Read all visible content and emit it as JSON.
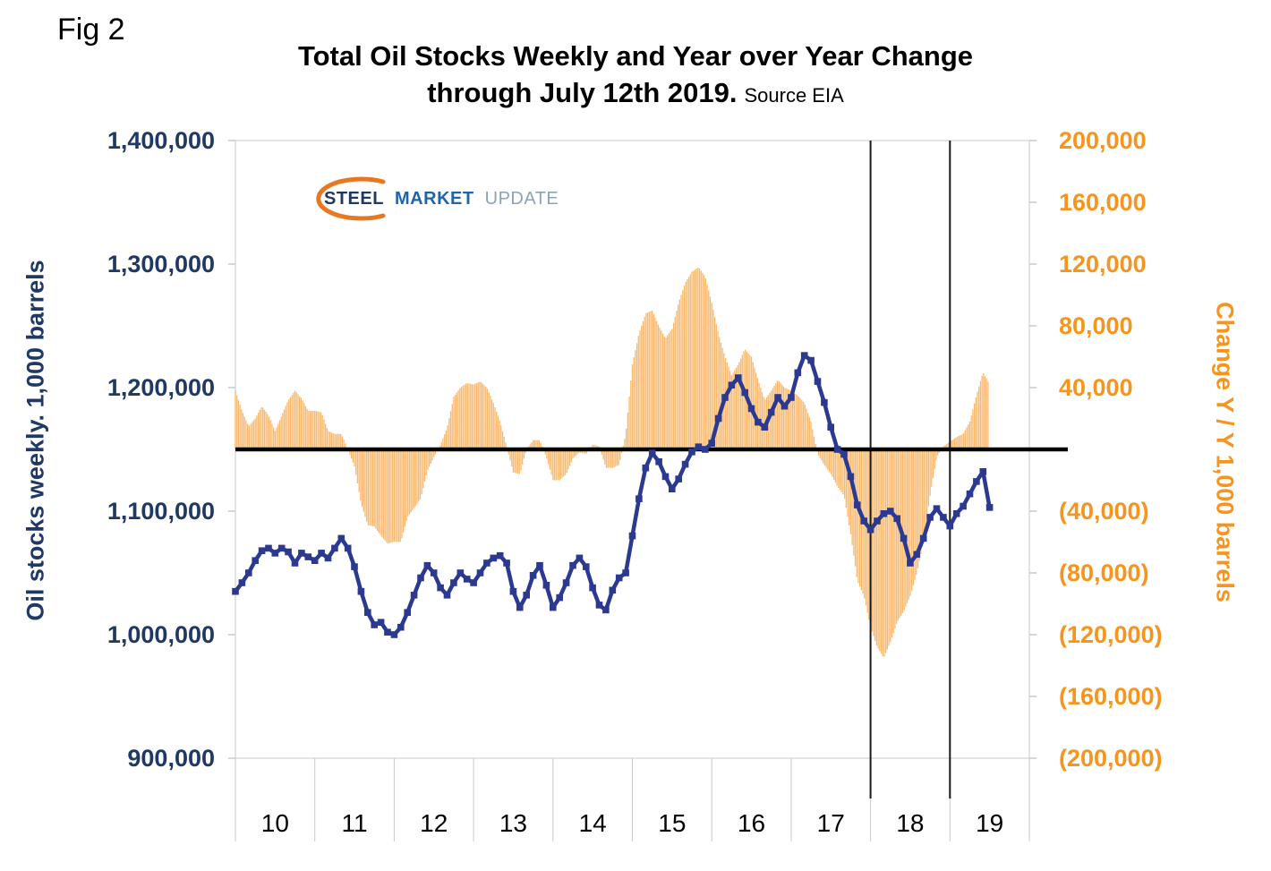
{
  "fig_label": "Fig 2",
  "title": {
    "line1": "Total Oil Stocks Weekly and Year over Year Change",
    "line2": "through July 12th 2019.",
    "source": "Source EIA"
  },
  "logo": {
    "steel": "STEEL",
    "market": "MARKET",
    "update": "UPDATE"
  },
  "left_axis": {
    "title": "Oil stocks weekly. 1,000 barrels",
    "color": "#1F3864",
    "ticks": [
      {
        "label": "1,400,000",
        "value": 1400000
      },
      {
        "label": "1,300,000",
        "value": 1300000
      },
      {
        "label": "1,200,000",
        "value": 1200000
      },
      {
        "label": "1,100,000",
        "value": 1100000
      },
      {
        "label": "1,000,000",
        "value": 1000000
      },
      {
        "label": "900,000",
        "value": 900000
      }
    ]
  },
  "right_axis": {
    "title": "Change Y / Y 1,000 barrels",
    "color": "#F7941D",
    "ticks": [
      {
        "label": "200,000",
        "value": 200000
      },
      {
        "label": "160,000",
        "value": 160000
      },
      {
        "label": "120,000",
        "value": 120000
      },
      {
        "label": "80,000",
        "value": 80000
      },
      {
        "label": "40,000",
        "value": 40000
      },
      {
        "label": "(40,000)",
        "value": -40000
      },
      {
        "label": "(80,000)",
        "value": -80000
      },
      {
        "label": "(120,000)",
        "value": -120000
      },
      {
        "label": "(160,000)",
        "value": -160000
      },
      {
        "label": "(200,000)",
        "value": -200000
      }
    ]
  },
  "x_axis": {
    "ticks": [
      {
        "label": "10",
        "value": 2010.5
      },
      {
        "label": "11",
        "value": 2011.5
      },
      {
        "label": "12",
        "value": 2012.5
      },
      {
        "label": "13",
        "value": 2013.5
      },
      {
        "label": "14",
        "value": 2014.5
      },
      {
        "label": "15",
        "value": 2015.5
      },
      {
        "label": "16",
        "value": 2016.5
      },
      {
        "label": "17",
        "value": 2017.5
      },
      {
        "label": "18",
        "value": 2018.5
      },
      {
        "label": "19",
        "value": 2019.5
      }
    ]
  },
  "chart_data": {
    "type": "combo",
    "title": "Total Oil Stocks Weekly and Year over Year Change through July 12th 2019",
    "source": "EIA",
    "x_range": [
      2010,
      2020
    ],
    "x_start": 2010.0,
    "x_step_years": 0.0833333,
    "left_ylim": [
      900000,
      1400000
    ],
    "right_ylim": [
      -200000,
      200000
    ],
    "left_ylabel": "Oil stocks weekly. 1,000 barrels",
    "right_ylabel": "Change Y / Y 1,000 barrels",
    "x_tick_labels": [
      "10",
      "11",
      "12",
      "13",
      "14",
      "15",
      "16",
      "17",
      "18",
      "19"
    ],
    "grid": false,
    "legend": "none",
    "zero_line": {
      "right_axis_value": 0,
      "color": "#000000",
      "width": 4.5
    },
    "vertical_marker_lines_x": [
      2018.0,
      2019.0
    ],
    "series": [
      {
        "name": "Oil stocks weekly (1,000 barrels, left axis)",
        "type": "line",
        "axis": "left",
        "color": "#2B3990",
        "marker": "square",
        "y": [
          1035000,
          1042000,
          1050000,
          1060000,
          1068000,
          1070000,
          1066000,
          1070000,
          1067000,
          1058000,
          1066000,
          1063000,
          1060000,
          1066000,
          1062000,
          1070000,
          1078000,
          1070000,
          1055000,
          1035000,
          1018000,
          1008000,
          1010000,
          1002000,
          1000000,
          1006000,
          1018000,
          1032000,
          1046000,
          1056000,
          1050000,
          1038000,
          1032000,
          1042000,
          1050000,
          1045000,
          1042000,
          1050000,
          1058000,
          1062000,
          1064000,
          1058000,
          1035000,
          1022000,
          1032000,
          1048000,
          1056000,
          1040000,
          1022000,
          1030000,
          1042000,
          1056000,
          1062000,
          1055000,
          1038000,
          1024000,
          1020000,
          1036000,
          1046000,
          1050000,
          1080000,
          1110000,
          1135000,
          1147000,
          1140000,
          1128000,
          1118000,
          1126000,
          1138000,
          1148000,
          1152000,
          1150000,
          1155000,
          1175000,
          1192000,
          1202000,
          1208000,
          1196000,
          1183000,
          1172000,
          1168000,
          1180000,
          1192000,
          1185000,
          1192000,
          1212000,
          1226000,
          1222000,
          1205000,
          1188000,
          1168000,
          1150000,
          1146000,
          1128000,
          1105000,
          1092000,
          1085000,
          1092000,
          1098000,
          1100000,
          1094000,
          1078000,
          1058000,
          1065000,
          1078000,
          1095000,
          1102000,
          1095000,
          1088000,
          1098000,
          1104000,
          1114000,
          1124000,
          1132000,
          1103000
        ]
      },
      {
        "name": "Change Y/Y (1,000 barrels, right axis)",
        "type": "bar",
        "axis": "right",
        "color": "#F9B25E",
        "y": [
          38000,
          25000,
          15000,
          20000,
          28000,
          22000,
          12000,
          22000,
          32000,
          38000,
          33000,
          25000,
          25000,
          24000,
          12000,
          10000,
          10000,
          0,
          -11000,
          -35000,
          -49000,
          -50000,
          -56000,
          -61000,
          -60000,
          -60000,
          -44000,
          -38000,
          -32000,
          -14000,
          -5000,
          3000,
          14000,
          34000,
          40000,
          43000,
          42000,
          44000,
          40000,
          30000,
          18000,
          2000,
          -15000,
          -16000,
          0,
          6000,
          6000,
          -5000,
          -20000,
          -20000,
          -16000,
          -6000,
          -2000,
          -3000,
          3000,
          2000,
          -12000,
          -12000,
          -10000,
          10000,
          55000,
          75000,
          88000,
          90000,
          80000,
          72000,
          78000,
          95000,
          108000,
          115000,
          118000,
          112000,
          95000,
          75000,
          60000,
          48000,
          55000,
          65000,
          60000,
          45000,
          32000,
          38000,
          45000,
          40000,
          38000,
          35000,
          30000,
          18000,
          -3000,
          -10000,
          -16000,
          -24000,
          -30000,
          -55000,
          -85000,
          -95000,
          -115000,
          -128000,
          -135000,
          -125000,
          -112000,
          -105000,
          -95000,
          -80000,
          -60000,
          -30000,
          -5000,
          2000,
          5000,
          8000,
          10000,
          18000,
          35000,
          50000,
          42000
        ]
      }
    ]
  }
}
